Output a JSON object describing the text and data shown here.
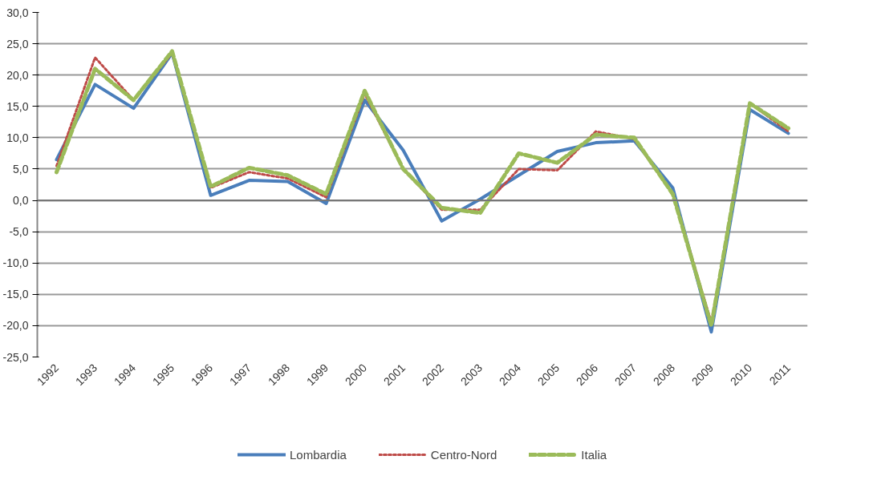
{
  "chart_data": {
    "type": "line",
    "categories": [
      "1992",
      "1993",
      "1994",
      "1995",
      "1996",
      "1997",
      "1998",
      "1999",
      "2000",
      "2001",
      "2002",
      "2003",
      "2004",
      "2005",
      "2006",
      "2007",
      "2008",
      "2009",
      "2010",
      "2011"
    ],
    "series": [
      {
        "name": "Lombardia",
        "color": "#4a7ebb",
        "line_style": "solid",
        "values": [
          6.5,
          18.5,
          14.7,
          23.5,
          0.8,
          3.2,
          3.0,
          -0.5,
          16.0,
          8.0,
          -3.3,
          0.2,
          4.0,
          7.8,
          9.2,
          9.5,
          2.0,
          -21.0,
          14.5,
          10.7
        ]
      },
      {
        "name": "Centro-Nord",
        "color": "#be4b48",
        "line_style": "dotted",
        "values": [
          5.5,
          22.8,
          16.0,
          23.5,
          2.0,
          4.5,
          3.5,
          0.5,
          17.0,
          5.0,
          -1.5,
          -1.5,
          5.0,
          4.8,
          11.0,
          9.8,
          1.0,
          -19.5,
          15.5,
          11.0
        ]
      },
      {
        "name": "Italia",
        "color": "#9bbb59",
        "line_style": "dashed",
        "values": [
          4.5,
          21.0,
          16.0,
          23.8,
          2.2,
          5.2,
          4.0,
          1.0,
          17.5,
          5.0,
          -1.2,
          -2.0,
          7.5,
          6.0,
          10.5,
          10.0,
          1.0,
          -20.0,
          15.5,
          11.5
        ]
      }
    ],
    "ylim": [
      -25,
      30
    ],
    "yticks": [
      {
        "value": -25,
        "label": "-25,0"
      },
      {
        "value": -20,
        "label": "-20,0"
      },
      {
        "value": -15,
        "label": "-15,0"
      },
      {
        "value": -10,
        "label": "-10,0"
      },
      {
        "value": -5,
        "label": "-5,0"
      },
      {
        "value": 0,
        "label": "0,0"
      },
      {
        "value": 5,
        "label": "5,0"
      },
      {
        "value": 10,
        "label": "10,0"
      },
      {
        "value": 15,
        "label": "15,0"
      },
      {
        "value": 20,
        "label": "20,0"
      },
      {
        "value": 25,
        "label": "25,0"
      },
      {
        "value": 30,
        "label": "30,0"
      }
    ],
    "grid": "y",
    "legend": "bottom",
    "marker": "none"
  }
}
